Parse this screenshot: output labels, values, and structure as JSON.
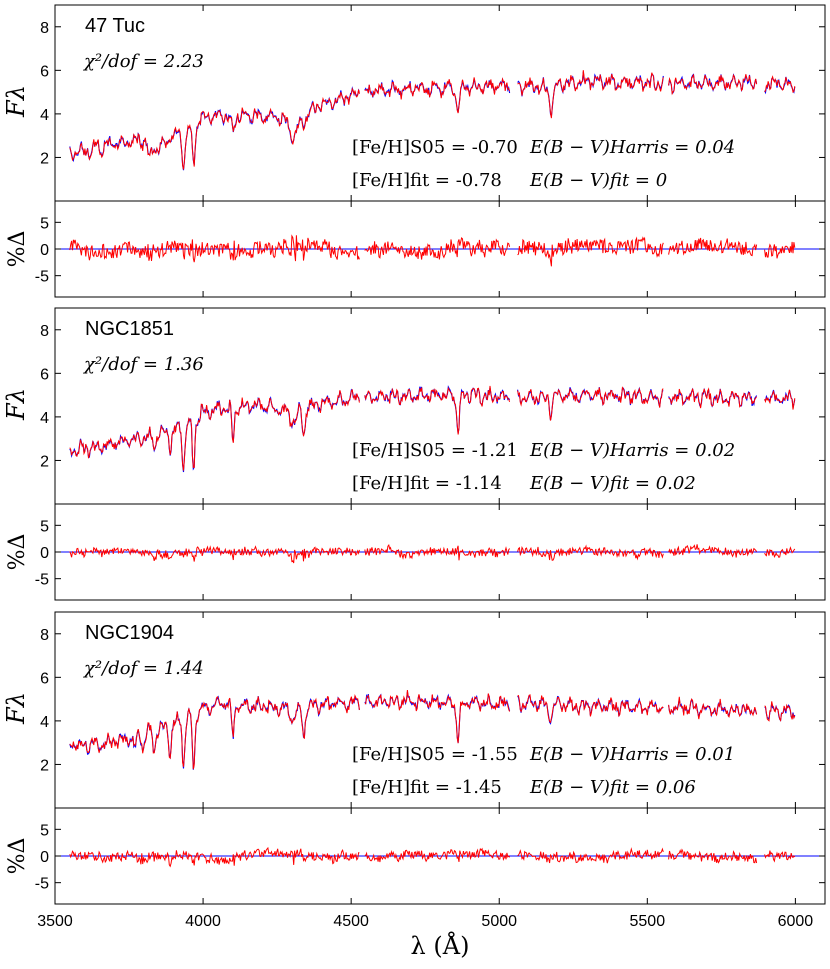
{
  "chart_data": {
    "type": "line",
    "x_axis": {
      "label": "λ (Å)",
      "range": [
        3500,
        6100
      ],
      "ticks": [
        3500,
        4000,
        4500,
        5000,
        5500,
        6000
      ],
      "tick_labels": [
        "3500",
        "4000",
        "4500",
        "5000",
        "5500",
        "6000"
      ]
    },
    "spectrum_axis": {
      "label": "Fλ",
      "range": [
        0,
        9
      ],
      "ticks": [
        2,
        4,
        6,
        8
      ],
      "tick_labels": [
        "2",
        "4",
        "6",
        "8"
      ]
    },
    "residual_axis": {
      "label": "%Δ",
      "range": [
        -9,
        9
      ],
      "ticks": [
        -5,
        0,
        5
      ],
      "tick_labels": [
        "-5",
        "0",
        "5"
      ]
    },
    "gaps": [
      [
        4530,
        4545
      ],
      [
        5035,
        5060
      ],
      [
        5555,
        5570
      ],
      [
        5870,
        5895
      ]
    ],
    "colors": {
      "observed": "#ff0000",
      "model": "#0000ff",
      "zero_line": "#0000ff",
      "axes": "#000000"
    },
    "panels": [
      {
        "cluster": "47 Tuc",
        "chi2_text": "χ²/dof = 2.23",
        "feh_s05_text": "[Fe/H]S05 = -0.70",
        "ebv_harris_text": "E(B − V)Harris = 0.04",
        "feh_fit_text": "[Fe/H]fit  = -0.78",
        "ebv_fit_text": "E(B − V)fit = 0",
        "continuum": [
          [
            3550,
            2.2
          ],
          [
            3600,
            2.3
          ],
          [
            3700,
            2.6
          ],
          [
            3800,
            2.8
          ],
          [
            3850,
            2.4
          ],
          [
            3900,
            3.0
          ],
          [
            3950,
            3.3
          ],
          [
            4000,
            3.8
          ],
          [
            4100,
            4.0
          ],
          [
            4200,
            3.9
          ],
          [
            4300,
            3.8
          ],
          [
            4400,
            4.4
          ],
          [
            4530,
            5.0
          ],
          [
            4600,
            5.1
          ],
          [
            4800,
            5.2
          ],
          [
            5030,
            5.3
          ],
          [
            5100,
            5.2
          ],
          [
            5300,
            5.5
          ],
          [
            5550,
            5.4
          ],
          [
            5700,
            5.4
          ],
          [
            5870,
            5.5
          ],
          [
            6000,
            5.3
          ]
        ],
        "dips": [
          [
            3934,
            1.6,
            5
          ],
          [
            3968,
            1.7,
            5
          ],
          [
            3820,
            0.6,
            6
          ],
          [
            4101,
            0.7,
            7
          ],
          [
            4305,
            0.8,
            14
          ],
          [
            4340,
            0.5,
            8
          ],
          [
            4861,
            1.0,
            6
          ],
          [
            5175,
            1.1,
            7
          ],
          [
            5890,
            0.5,
            6
          ]
        ],
        "resid_amp": 1.6
      },
      {
        "cluster": "NGC1851",
        "chi2_text": "χ²/dof = 1.36",
        "feh_s05_text": "[Fe/H]S05 = -1.21",
        "ebv_harris_text": "E(B − V)Harris = 0.02",
        "feh_fit_text": "[Fe/H]fit  = -1.14",
        "ebv_fit_text": "E(B − V)fit = 0.02",
        "continuum": [
          [
            3550,
            2.5
          ],
          [
            3650,
            2.6
          ],
          [
            3750,
            2.9
          ],
          [
            3850,
            3.2
          ],
          [
            3950,
            3.6
          ],
          [
            4000,
            4.2
          ],
          [
            4050,
            4.4
          ],
          [
            4100,
            4.4
          ],
          [
            4200,
            4.5
          ],
          [
            4300,
            4.3
          ],
          [
            4400,
            4.6
          ],
          [
            4530,
            4.9
          ],
          [
            4700,
            5.0
          ],
          [
            4900,
            5.0
          ],
          [
            5030,
            4.9
          ],
          [
            5300,
            5.0
          ],
          [
            5550,
            4.9
          ],
          [
            5870,
            4.9
          ],
          [
            6000,
            4.8
          ]
        ],
        "dips": [
          [
            3934,
            2.0,
            4
          ],
          [
            3968,
            2.3,
            4
          ],
          [
            3889,
            0.8,
            4
          ],
          [
            3835,
            0.7,
            4
          ],
          [
            4101,
            1.4,
            4
          ],
          [
            4340,
            1.2,
            5
          ],
          [
            4305,
            0.6,
            10
          ],
          [
            4861,
            1.6,
            5
          ],
          [
            5175,
            0.7,
            6
          ]
        ],
        "resid_amp": 0.9
      },
      {
        "cluster": "NGC1904",
        "chi2_text": "χ²/dof = 1.44",
        "feh_s05_text": "[Fe/H]S05 = -1.55",
        "ebv_harris_text": "E(B − V)Harris = 0.01",
        "feh_fit_text": "[Fe/H]fit  = -1.45",
        "ebv_fit_text": "E(B − V)fit = 0.06",
        "continuum": [
          [
            3550,
            2.9
          ],
          [
            3650,
            2.9
          ],
          [
            3750,
            3.2
          ],
          [
            3850,
            3.6
          ],
          [
            3950,
            4.2
          ],
          [
            4000,
            4.6
          ],
          [
            4050,
            4.8
          ],
          [
            4150,
            4.7
          ],
          [
            4300,
            4.6
          ],
          [
            4530,
            4.9
          ],
          [
            4700,
            4.9
          ],
          [
            5030,
            4.8
          ],
          [
            5300,
            4.7
          ],
          [
            5550,
            4.6
          ],
          [
            5870,
            4.5
          ],
          [
            6000,
            4.4
          ]
        ],
        "dips": [
          [
            3934,
            2.2,
            4
          ],
          [
            3968,
            2.8,
            4
          ],
          [
            3889,
            1.3,
            4
          ],
          [
            3835,
            1.0,
            4
          ],
          [
            3797,
            0.8,
            4
          ],
          [
            3770,
            0.6,
            4
          ],
          [
            4101,
            1.5,
            4
          ],
          [
            4340,
            1.3,
            5
          ],
          [
            4305,
            0.5,
            10
          ],
          [
            4861,
            1.7,
            5
          ],
          [
            5175,
            0.5,
            6
          ]
        ],
        "resid_amp": 1.0
      }
    ]
  }
}
